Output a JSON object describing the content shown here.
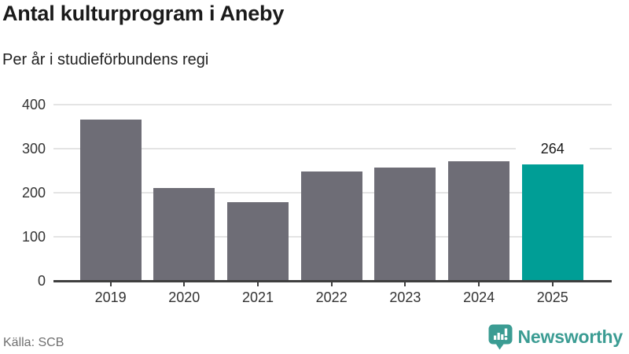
{
  "header": {
    "title": "Antal kulturprogram i Aneby",
    "subtitle": "Per år i studieförbundens regi"
  },
  "chart_data": {
    "type": "bar",
    "categories": [
      "2019",
      "2020",
      "2021",
      "2022",
      "2023",
      "2024",
      "2025"
    ],
    "values": [
      366,
      210,
      178,
      248,
      257,
      271,
      264
    ],
    "title": "Antal kulturprogram i Aneby",
    "subtitle": "Per år i studieförbundens regi",
    "xlabel": "",
    "ylabel": "",
    "ylim": [
      0,
      400
    ],
    "yticks": [
      0,
      100,
      200,
      300,
      400
    ],
    "grid": true,
    "legend": "none",
    "bar_color": "#6e6d76",
    "highlight_index": 6,
    "highlight_color": "#009e96",
    "highlight_value_label": "264"
  },
  "footer": {
    "source": "Källa: SCB",
    "brand_name": "Newsworthy",
    "brand_color": "#3b9c93",
    "brand_icon": "newsworthy-bar-chart-bubble-icon"
  }
}
